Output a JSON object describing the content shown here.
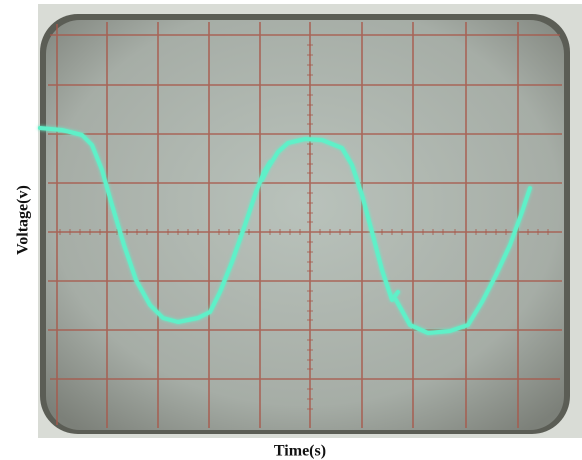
{
  "axis_labels": {
    "y": "Voltage(v)",
    "x": "Time(s)"
  }
}
